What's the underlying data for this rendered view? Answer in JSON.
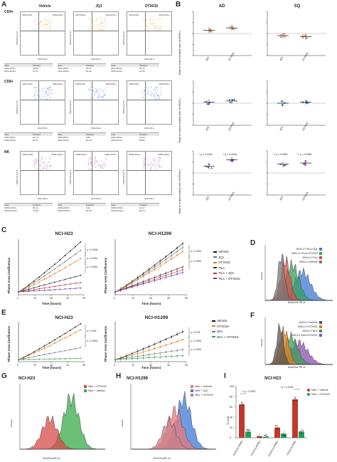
{
  "panels": {
    "A": "A",
    "B": "B",
    "C": "C",
    "D": "D",
    "E": "E",
    "F": "F",
    "G": "G",
    "H": "H",
    "I": "I"
  },
  "panelA": {
    "columns": [
      "Vehicle",
      "JQ1",
      "OTX015"
    ],
    "rows": [
      {
        "label": "CD4+",
        "q_left": "CD4+IFNG-",
        "q_right": "CD4+IFNG+",
        "ylab": "CD4 PE-Cy7-A",
        "xlab": "IFNG PE-A",
        "tables": [
          {
            "h1": "Gate",
            "h2": "%Gated",
            "r1": [
              "CD4+IFNG-",
              "42.89"
            ],
            "r2": [
              "CD4+IFNG+",
              "57.11"
            ]
          },
          {
            "h1": "Gate",
            "h2": "%Gated",
            "r1": [
              "CD4+IFNG-",
              "36.37"
            ],
            "r2": [
              "CD4+IFNG+",
              "63.63"
            ]
          },
          {
            "h1": "Gate",
            "h2": "%Gated",
            "r1": [
              "CD4+IFNG-",
              "38.44"
            ],
            "r2": [
              "CD4+IFNG+",
              "61.56"
            ]
          }
        ]
      },
      {
        "label": "CD8+",
        "q_left": "CD8+IFNG-",
        "q_right": "CD8+IFNG+",
        "ylab": "CD8 PE-Cy7-A",
        "xlab": "IFNG PE-A",
        "tables": [
          {
            "h1": "Gate",
            "h2": "%Gated",
            "r1": [
              "CD8+IFNG-",
              "15.73"
            ],
            "r2": [
              "CD8+IFNG+",
              "84.27"
            ]
          },
          {
            "h1": "Gate",
            "h2": "%Gated",
            "r1": [
              "CD8+IFNG-",
              "9.82"
            ],
            "r2": [
              "CD8+IFNG+",
              "90.18"
            ]
          },
          {
            "h1": "Gate",
            "h2": "%Gated",
            "r1": [
              "CD8+IFNG-",
              "13.14"
            ],
            "r2": [
              "CD8+IFNG+",
              "86.86"
            ]
          }
        ]
      },
      {
        "label": "NK",
        "q_left": "CD56+IFNG-",
        "q_right": "CD56+IFNG+",
        "ylab": "CD56 PE-Cy7-A",
        "xlab": "IFNG PE-A",
        "tables": [
          {
            "h1": "Gate",
            "h2": "%Gated",
            "r1": [
              "CD56+IFNG-",
              "28.42"
            ],
            "r2": [
              "CD56+IFNG+",
              "71.58"
            ]
          },
          {
            "h1": "Gate",
            "h2": "%Gated",
            "r1": [
              "CD56+IFNG-",
              "8.42"
            ],
            "r2": [
              "CD56+IFNG+",
              "91.58"
            ]
          },
          {
            "h1": "Gate",
            "h2": "%Gated",
            "r1": [
              "CD56+IFNG-",
              "13.27"
            ],
            "r2": [
              "CD56+IFNG+",
              "86.73"
            ]
          }
        ]
      }
    ],
    "dot_colors": [
      "#e8a84a",
      "#4a7fd4",
      "#b05ab8"
    ]
  },
  "panelB": {
    "col_titles": [
      "AD",
      "SQ"
    ],
    "ylabel": "Ratio to vehicle-treated cells (% IFNG+)",
    "ylabel2": "Ratio to vehicle-treated cells (% IFNG+)",
    "ylabel3": "Ratio to vehicle-treated cells (% IFNG+)",
    "xcats": [
      "JQ1",
      "OTX015"
    ],
    "pvals_NK_AD": [
      "*  p = 0.0432",
      "*  p = 0.0044"
    ],
    "pvals_NK_SQ": [
      "**  p = 0.0083",
      "**  p = 0.0080"
    ]
  },
  "panelC": {
    "titles": [
      "NCI-H23",
      "NCI-H1299"
    ],
    "xlabel": "Time (hours)",
    "ylabel": "Phase Area Confluence",
    "legend": [
      "Vehicle",
      "JQ1",
      "OTX015",
      "TILs",
      "TILs + JQ1",
      "TILs + OTX015"
    ],
    "pvals_left": [
      "p = 0.0006",
      "p = 0.0001",
      "p = 0.0001"
    ],
    "pvals_right": [
      "p = 0.0001",
      "p = 0.0001"
    ]
  },
  "panelD": {
    "legend": [
      "NSCLC+TILs+JQ1",
      "NSCLC+TILs+OTX015",
      "NSCLC+TILs",
      "NSCLC+Vehicle"
    ],
    "xlabel": "AnnexinV PE-A",
    "ylabel": "%Gated"
  },
  "panelE": {
    "titles": [
      "NCI-H23",
      "NCI-H1299"
    ],
    "xlabel": "Time (hours)",
    "ylabel": "Phase Area Confluence",
    "legend": [
      "Vehicle",
      "OTX015",
      "NKs",
      "NKs + OTX015"
    ],
    "pvals_left": [
      "p = 0.040",
      "p = 0.0001"
    ],
    "pvals_right": [
      "p = 0.033",
      "p = 0.0001",
      "p = 0.0001"
    ]
  },
  "panelF": {
    "legend": [
      "NSCLC+Vehicle",
      "NSCLC+OTX015",
      "NSCLC+NKs",
      "NSCLC+NKs+OTX015"
    ],
    "xlabel": "AnnexinV PE-A",
    "ylabel": "%Gated"
  },
  "panelG": {
    "title": "NCI-H23",
    "legend": [
      "NKs + OTX015",
      "NKs + Vehicle"
    ],
    "xlabel": "CD107a APC-A",
    "ylabel": "%Gated"
  },
  "panelH": {
    "title": "NCI-H1299",
    "legend": [
      "NKs + Vehicle",
      "NKs + JQ1",
      "NKs + OTX015"
    ],
    "xlabel": "CD107a APC-A",
    "ylabel": "%Gated"
  },
  "panelI": {
    "title": "NCI-H23",
    "ylabel": "% cells",
    "legend": [
      "NKs + Vehicle",
      "NKs + OTX015"
    ],
    "cats": [
      "CD107a+IFNG-",
      "CD107a-IFNG+",
      "CD107a+IFNG+",
      "CD107a-IFNG-"
    ],
    "pvals": [
      "**  p = 0.0097",
      "*  p = 0.0230"
    ],
    "yticks": [
      "0",
      "20",
      "40",
      "60",
      "80",
      "100"
    ]
  },
  "chart_data": [
    {
      "type": "bar",
      "title": "NCI-H23",
      "ylabel": "% cells",
      "categories": [
        "CD107a+IFNG-",
        "CD107a-IFNG+",
        "CD107a+IFNG+",
        "CD107a-IFNG-"
      ],
      "series": [
        {
          "name": "NKs + Vehicle",
          "values": [
            65,
            3,
            20,
            75
          ]
        },
        {
          "name": "NKs + OTX015",
          "values": [
            12,
            2,
            8,
            12
          ]
        }
      ],
      "ylim": [
        0,
        100
      ]
    }
  ]
}
